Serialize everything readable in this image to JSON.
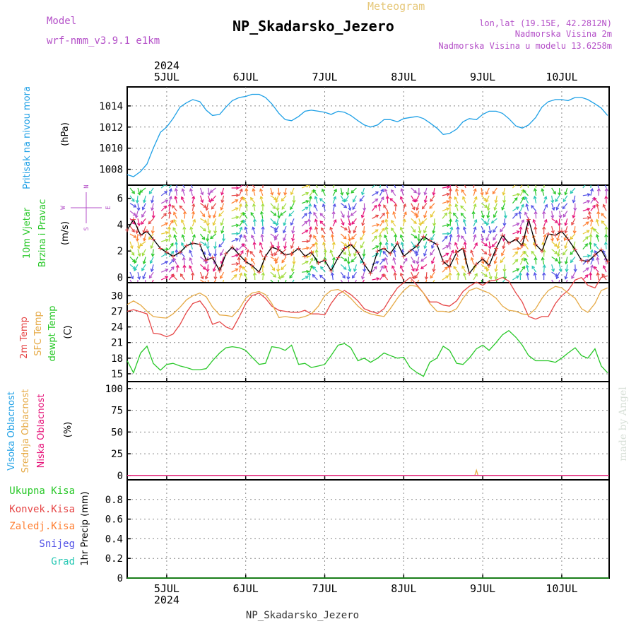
{
  "header": {
    "meteogram_label": "Meteogram",
    "model_label": "Model",
    "model_name": "wrf-nmm_v3.9.1 e1km",
    "station": "NP_Skadarsko_Jezero",
    "coords": "lon,lat (19.15E, 42.2812N)",
    "elevation": "Nadmorska Visina 2m",
    "model_elevation": "Nadmorska Visina u modelu 13.6258m",
    "footer_station": "NP_Skadarsko_Jezero",
    "credit": "made by Angel"
  },
  "colors": {
    "pressure": "#1ea0e6",
    "temp2m": "#e64646",
    "sfc_temp": "#e6aa46",
    "dewpt": "#28c828",
    "high_cloud": "#1ea0e6",
    "mid_cloud": "#e6aa46",
    "low_cloud": "#e6147a",
    "total_precip": "#28c828",
    "conv_precip": "#e64646",
    "frozen_precip": "#ff7f32",
    "snow": "#5050e6",
    "graupel": "#28c8b4",
    "wind_label": "#28c828",
    "wind_dir_label": "#b450c8"
  },
  "chart_data": {
    "type": "line",
    "time_axis": {
      "year_label": "2024",
      "day_labels": [
        "5JUL",
        "6JUL",
        "7JUL",
        "8JUL",
        "9JUL",
        "10JUL"
      ],
      "day_positions": [
        0.5,
        1.5,
        2.5,
        3.5,
        4.5,
        5.5
      ],
      "range": [
        0,
        6.1
      ]
    },
    "panels": [
      {
        "id": "pressure",
        "ylabel": [
          "Pritisak na nivou mora",
          "(hPa)"
        ],
        "ylim": [
          1006.5,
          1015.8
        ],
        "yticks": [
          1008,
          1010,
          1012,
          1014
        ],
        "series": [
          {
            "key": "pressure",
            "x": [
              0,
              0.08,
              0.17,
              0.25,
              0.33,
              0.42,
              0.5,
              0.58,
              0.67,
              0.75,
              0.83,
              0.92,
              1.0,
              1.08,
              1.17,
              1.25,
              1.33,
              1.42,
              1.5,
              1.58,
              1.67,
              1.75,
              1.83,
              1.92,
              2.0,
              2.08,
              2.17,
              2.25,
              2.33,
              2.42,
              2.5,
              2.58,
              2.67,
              2.75,
              2.83,
              2.92,
              3.0,
              3.08,
              3.17,
              3.25,
              3.33,
              3.42,
              3.5,
              3.58,
              3.67,
              3.75,
              3.83,
              3.92,
              4.0,
              4.08,
              4.17,
              4.25,
              4.33,
              4.42,
              4.5,
              4.58,
              4.67,
              4.75,
              4.83,
              4.92,
              5.0,
              5.08,
              5.17,
              5.25,
              5.33,
              5.42,
              5.5,
              5.58,
              5.67,
              5.75,
              5.83,
              5.92,
              6.0,
              6.08
            ],
            "values": [
              1007.5,
              1007.3,
              1007.8,
              1008.5,
              1010.0,
              1011.5,
              1012.0,
              1012.8,
              1013.9,
              1014.3,
              1014.6,
              1014.4,
              1013.6,
              1013.1,
              1013.2,
              1013.9,
              1014.5,
              1014.8,
              1014.9,
              1015.1,
              1015.1,
              1014.8,
              1014.2,
              1013.3,
              1012.7,
              1012.6,
              1013.0,
              1013.5,
              1013.6,
              1013.5,
              1013.4,
              1013.2,
              1013.5,
              1013.4,
              1013.1,
              1012.6,
              1012.2,
              1012.0,
              1012.2,
              1012.7,
              1012.7,
              1012.5,
              1012.8,
              1012.9,
              1013.0,
              1012.8,
              1012.4,
              1011.9,
              1011.3,
              1011.4,
              1011.8,
              1012.5,
              1012.8,
              1012.7,
              1013.2,
              1013.5,
              1013.5,
              1013.3,
              1012.8,
              1012.1,
              1011.9,
              1012.2,
              1012.9,
              1013.9,
              1014.4,
              1014.6,
              1014.6,
              1014.5,
              1014.8,
              1014.8,
              1014.6,
              1014.2,
              1013.8,
              1013.1
            ]
          }
        ]
      },
      {
        "id": "wind",
        "ylabel": [
          "10m Vjetar",
          "Brzina i Pravac",
          "(m/s)"
        ],
        "compass": {
          "n": "N",
          "s": "S",
          "w": "W",
          "e": "E"
        },
        "ylim": [
          -0.4,
          7.0
        ],
        "yticks": [
          0,
          2,
          4,
          6
        ],
        "series": [
          {
            "key": "wind_speed",
            "x": [
              0,
              0.08,
              0.17,
              0.25,
              0.33,
              0.42,
              0.5,
              0.58,
              0.67,
              0.75,
              0.83,
              0.92,
              1.0,
              1.08,
              1.17,
              1.25,
              1.33,
              1.42,
              1.5,
              1.58,
              1.67,
              1.75,
              1.83,
              1.92,
              2.0,
              2.08,
              2.17,
              2.25,
              2.33,
              2.42,
              2.5,
              2.58,
              2.67,
              2.75,
              2.83,
              2.92,
              3.0,
              3.08,
              3.17,
              3.25,
              3.33,
              3.42,
              3.5,
              3.58,
              3.67,
              3.75,
              3.83,
              3.92,
              4.0,
              4.08,
              4.17,
              4.25,
              4.33,
              4.42,
              4.5,
              4.58,
              4.67,
              4.75,
              4.83,
              4.92,
              5.0,
              5.08,
              5.17,
              5.25,
              5.33,
              5.42,
              5.5,
              5.58,
              5.67,
              5.75,
              5.83,
              5.92,
              6.0,
              6.08
            ],
            "values": [
              3.6,
              4.4,
              3.2,
              3.5,
              2.9,
              2.2,
              1.9,
              1.6,
              1.9,
              2.4,
              2.6,
              2.5,
              1.3,
              1.5,
              0.5,
              1.8,
              2.3,
              1.7,
              1.2,
              0.9,
              0.4,
              1.6,
              2.3,
              2.1,
              1.7,
              1.8,
              2.2,
              1.6,
              1.9,
              1.1,
              1.3,
              0.5,
              1.5,
              2.2,
              2.5,
              1.9,
              1.0,
              0.3,
              2.0,
              2.2,
              1.8,
              2.6,
              1.6,
              2.0,
              2.4,
              3.1,
              2.8,
              2.5,
              1.2,
              0.8,
              1.9,
              2.2,
              0.3,
              1.0,
              1.4,
              0.9,
              2.2,
              3.2,
              2.6,
              2.9,
              2.4,
              4.4,
              2.5,
              2.0,
              3.3,
              3.2,
              3.5,
              2.9,
              2.1,
              1.3,
              1.2,
              1.7,
              2.1,
              1.2
            ]
          }
        ],
        "direction_colors": [
          "#28c828",
          "#28c8b4",
          "#5050e6",
          "#b450c8",
          "#e6147a",
          "#e64646",
          "#ff7f32",
          "#e6c832",
          "#a0dc3c"
        ]
      },
      {
        "id": "temperature",
        "ylabel": [
          "2m Temp",
          "SFC Temp",
          "dewpt Temp",
          "(C)"
        ],
        "ylim": [
          13.5,
          32.5
        ],
        "yticks": [
          15,
          18,
          21,
          24,
          27,
          30
        ],
        "series": [
          {
            "key": "temp2m",
            "x": [
              0,
              0.08,
              0.17,
              0.25,
              0.33,
              0.42,
              0.5,
              0.58,
              0.67,
              0.75,
              0.83,
              0.92,
              1.0,
              1.08,
              1.17,
              1.25,
              1.33,
              1.42,
              1.5,
              1.58,
              1.67,
              1.75,
              1.83,
              1.92,
              2.0,
              2.08,
              2.17,
              2.25,
              2.33,
              2.42,
              2.5,
              2.58,
              2.67,
              2.75,
              2.83,
              2.92,
              3.0,
              3.08,
              3.17,
              3.25,
              3.33,
              3.42,
              3.5,
              3.58,
              3.67,
              3.75,
              3.83,
              3.92,
              4.0,
              4.08,
              4.17,
              4.25,
              4.33,
              4.42,
              4.5,
              4.58,
              4.67,
              4.75,
              4.83,
              4.92,
              5.0,
              5.08,
              5.17,
              5.25,
              5.33,
              5.42,
              5.5,
              5.58,
              5.67,
              5.75,
              5.83,
              5.92,
              6.0,
              6.08
            ],
            "values": [
              27.0,
              27.3,
              26.9,
              26.5,
              22.8,
              22.6,
              22.1,
              22.6,
              24.5,
              26.8,
              28.5,
              29.0,
              27.4,
              24.5,
              25.0,
              24.0,
              23.5,
              26.0,
              28.5,
              30.0,
              30.5,
              29.5,
              28.0,
              27.2,
              27.0,
              26.8,
              26.8,
              27.2,
              26.5,
              26.5,
              26.3,
              28.5,
              30.3,
              31.0,
              30.2,
              29.0,
              27.5,
              27.0,
              26.6,
              27.5,
              29.5,
              31.5,
              32.5,
              33.5,
              32.0,
              30.5,
              28.8,
              28.8,
              28.2,
              28.0,
              29.0,
              30.8,
              31.8,
              32.6,
              32.0,
              32.8,
              33.0,
              33.5,
              32.8,
              30.5,
              28.8,
              26.0,
              25.5,
              26.0,
              26.0,
              28.5,
              30.0,
              31.0,
              33.0,
              33.5,
              32.0,
              31.5,
              33.5,
              33.8
            ]
          },
          {
            "key": "sfc_temp",
            "x": [
              0,
              0.08,
              0.17,
              0.25,
              0.33,
              0.42,
              0.5,
              0.58,
              0.67,
              0.75,
              0.83,
              0.92,
              1.0,
              1.08,
              1.17,
              1.25,
              1.33,
              1.42,
              1.5,
              1.58,
              1.67,
              1.75,
              1.83,
              1.92,
              2.0,
              2.08,
              2.17,
              2.25,
              2.33,
              2.42,
              2.5,
              2.58,
              2.67,
              2.75,
              2.83,
              2.92,
              3.0,
              3.08,
              3.17,
              3.25,
              3.33,
              3.42,
              3.5,
              3.58,
              3.67,
              3.75,
              3.83,
              3.92,
              4.0,
              4.08,
              4.17,
              4.25,
              4.33,
              4.42,
              4.5,
              4.58,
              4.67,
              4.75,
              4.83,
              4.92,
              5.0,
              5.08,
              5.17,
              5.25,
              5.33,
              5.42,
              5.5,
              5.58,
              5.67,
              5.75,
              5.83,
              5.92,
              6.0,
              6.08
            ],
            "values": [
              28.3,
              29.0,
              28.2,
              27.0,
              26.0,
              25.8,
              25.7,
              26.5,
              27.8,
              29.2,
              30.0,
              30.5,
              29.8,
              27.8,
              26.3,
              26.2,
              26.0,
              27.5,
              29.5,
              30.5,
              30.8,
              30.2,
              28.5,
              25.8,
              26.0,
              25.8,
              25.7,
              26.0,
              26.5,
              28.0,
              30.0,
              31.0,
              31.2,
              30.5,
              29.5,
              28.0,
              27.0,
              26.5,
              26.2,
              26.0,
              27.5,
              29.5,
              31.0,
              32.0,
              31.8,
              30.5,
              28.5,
              27.0,
              27.0,
              26.8,
              27.5,
              29.5,
              31.0,
              31.5,
              31.0,
              30.5,
              29.5,
              28.0,
              27.2,
              27.0,
              26.5,
              26.3,
              27.5,
              29.5,
              31.0,
              31.8,
              31.5,
              30.5,
              29.5,
              27.5,
              26.8,
              28.5,
              31.0,
              31.5
            ]
          },
          {
            "key": "dewpt",
            "x": [
              0,
              0.08,
              0.17,
              0.25,
              0.33,
              0.42,
              0.5,
              0.58,
              0.67,
              0.75,
              0.83,
              0.92,
              1.0,
              1.08,
              1.17,
              1.25,
              1.33,
              1.42,
              1.5,
              1.58,
              1.67,
              1.75,
              1.83,
              1.92,
              2.0,
              2.08,
              2.17,
              2.25,
              2.33,
              2.42,
              2.5,
              2.58,
              2.67,
              2.75,
              2.83,
              2.92,
              3.0,
              3.08,
              3.17,
              3.25,
              3.33,
              3.42,
              3.5,
              3.58,
              3.67,
              3.75,
              3.83,
              3.92,
              4.0,
              4.08,
              4.17,
              4.25,
              4.33,
              4.42,
              4.5,
              4.58,
              4.67,
              4.75,
              4.83,
              4.92,
              5.0,
              5.08,
              5.17,
              5.25,
              5.33,
              5.42,
              5.5,
              5.58,
              5.67,
              5.75,
              5.83,
              5.92,
              6.0,
              6.08
            ],
            "values": [
              17.5,
              15.2,
              19.0,
              20.3,
              17.0,
              15.7,
              16.8,
              17.0,
              16.5,
              16.2,
              15.8,
              15.8,
              16.0,
              17.5,
              19.0,
              20.0,
              20.2,
              20.0,
              19.5,
              18.2,
              16.8,
              17.0,
              20.2,
              20.0,
              19.5,
              20.5,
              16.8,
              17.0,
              16.2,
              16.5,
              16.8,
              18.5,
              20.5,
              20.8,
              20.0,
              17.5,
              18.0,
              17.2,
              18.0,
              19.0,
              18.5,
              18.0,
              18.2,
              16.2,
              15.2,
              14.5,
              17.2,
              18.0,
              20.3,
              19.5,
              17.0,
              16.8,
              18.0,
              19.8,
              20.5,
              19.5,
              21.0,
              22.5,
              23.3,
              22.0,
              20.5,
              18.5,
              17.5,
              17.5,
              17.5,
              17.2,
              18.0,
              19.0,
              20.0,
              18.5,
              18.0,
              19.8,
              16.5,
              15.2
            ]
          }
        ]
      },
      {
        "id": "cloud",
        "ylabel": [
          "Visoka Oblacnost",
          "Srednja Oblacnost",
          "Niska Oblacnost",
          "(%)"
        ],
        "ylim": [
          -5,
          108
        ],
        "yticks": [
          0,
          25,
          50,
          75,
          100
        ],
        "series": [
          {
            "key": "high_cloud",
            "x": [
              0,
              6.1
            ],
            "values": [
              0,
              0
            ]
          },
          {
            "key": "mid_cloud",
            "x": [
              0,
              4.4,
              4.42,
              4.44,
              6.1
            ],
            "values": [
              0,
              0,
              6,
              0,
              0
            ]
          },
          {
            "key": "low_cloud",
            "x": [
              0,
              6.1
            ],
            "values": [
              0,
              0
            ]
          }
        ]
      },
      {
        "id": "precip",
        "ylabel": [
          "1hr Precip (mm)"
        ],
        "legend": [
          "Ukupna Kisa",
          "Konvek.Kisa",
          "Zaledj.Kisa",
          "Snijeg",
          "Grad"
        ],
        "ylim": [
          0,
          1.0
        ],
        "yticks": [
          0,
          0.2,
          0.4,
          0.6,
          0.8
        ],
        "tick_labels": [
          "0",
          "0.2",
          "0.4",
          "0.6",
          "0.8"
        ],
        "series": [
          {
            "key": "total_precip",
            "x": [
              0,
              6.1
            ],
            "values": [
              0,
              0
            ]
          }
        ]
      }
    ]
  }
}
